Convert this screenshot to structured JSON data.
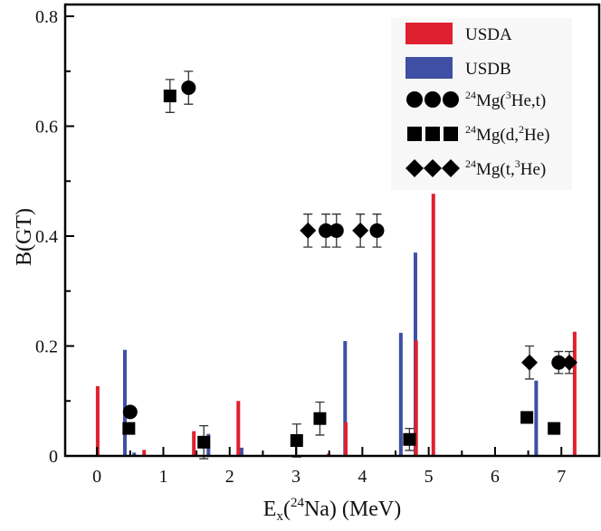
{
  "chart_data": {
    "type": "bar+scatter",
    "xlabel": {
      "main": "E",
      "sub": "x",
      "open": "(",
      "sup": "24",
      "rest": "Na) (MeV)"
    },
    "ylabel": "B(GT)",
    "xlim": [
      -0.48,
      7.57
    ],
    "ylim": [
      0,
      0.8
    ],
    "xticks": [
      "0",
      "1",
      "2",
      "3",
      "4",
      "5",
      "6",
      "7"
    ],
    "yticks": [
      "0",
      "0.2",
      "0.4",
      "0.6",
      "0.8"
    ],
    "grid": false,
    "legend_placement": "top-right",
    "bar_series": [
      {
        "name": "USDB",
        "color": "#3f4fa3",
        "x": [
          0.42,
          0.56,
          1.68,
          2.18,
          3.74,
          4.58,
          4.8,
          6.62
        ],
        "values": [
          0.193,
          0.006,
          0.04,
          0.015,
          0.209,
          0.224,
          0.37,
          0.137
        ]
      },
      {
        "name": "USDA",
        "color": "#e0202e",
        "x": [
          0.01,
          0.71,
          1.46,
          2.13,
          3.49,
          3.75,
          4.81,
          5.07,
          7.2
        ],
        "values": [
          0.127,
          0.011,
          0.045,
          0.1,
          0.004,
          0.061,
          0.21,
          0.477,
          0.226
        ]
      }
    ],
    "point_series": [
      {
        "name": {
          "sup1": "24",
          "t1": "Mg(",
          "sup2": "3",
          "t2": "He,t)"
        },
        "marker": "circle",
        "x": [
          0.5,
          1.38,
          3.45,
          3.61,
          4.22,
          6.96
        ],
        "values": [
          0.08,
          0.67,
          0.41,
          0.41,
          0.41,
          0.17
        ],
        "errors": [
          0,
          0.03,
          0.03,
          0.03,
          0.03,
          0.02
        ]
      },
      {
        "name": {
          "sup1": "24",
          "t1": "Mg(d,",
          "sup2": "2",
          "t2": "He)"
        },
        "marker": "square",
        "x": [
          0.48,
          1.1,
          1.61,
          3.01,
          3.36,
          4.71,
          6.48,
          6.89
        ],
        "values": [
          0.05,
          0.655,
          0.025,
          0.028,
          0.068,
          0.03,
          0.07,
          0.05
        ],
        "errors": [
          0,
          0.03,
          0.03,
          0.03,
          0.03,
          0.02,
          0,
          0
        ]
      },
      {
        "name": {
          "sup1": "24",
          "t1": "Mg(t,",
          "sup2": "3",
          "t2": "He)"
        },
        "marker": "diamond",
        "x": [
          3.18,
          3.97,
          6.52,
          7.12
        ],
        "values": [
          0.41,
          0.41,
          0.17,
          0.17
        ],
        "errors": [
          0.03,
          0.03,
          0.03,
          0.02
        ]
      }
    ]
  }
}
